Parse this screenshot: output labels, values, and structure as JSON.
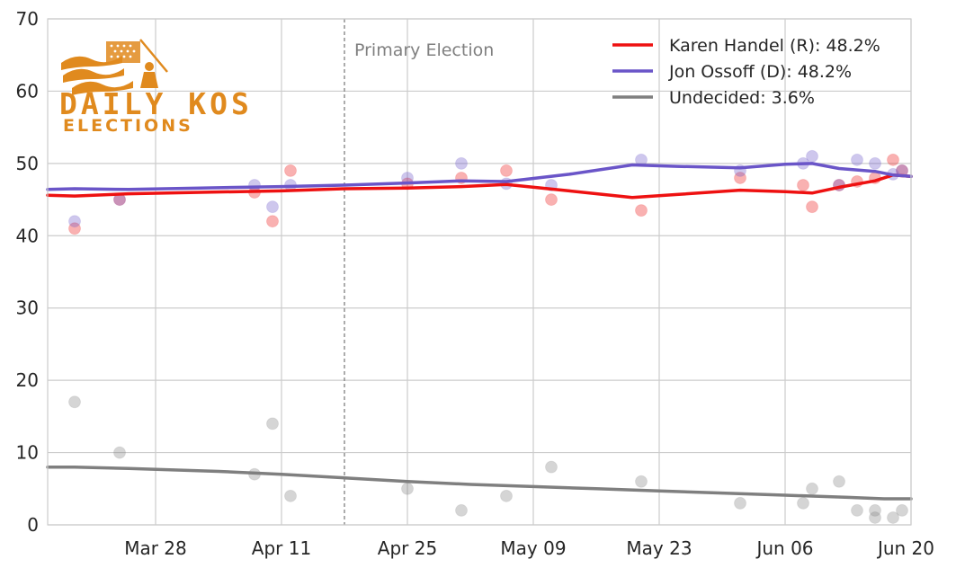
{
  "logo": {
    "line1": "DAILY KOS",
    "line2": "ELECTIONS",
    "color": "#e08a1e"
  },
  "chart_data": {
    "type": "line",
    "title": "",
    "xlabel": "",
    "ylabel": "",
    "ylim": [
      0,
      70
    ],
    "yticks": [
      0,
      10,
      20,
      30,
      40,
      50,
      60,
      70
    ],
    "xlim": [
      "2017-03-16",
      "2017-06-20"
    ],
    "xticks": [
      {
        "date": "2017-03-28",
        "label": "Mar 28"
      },
      {
        "date": "2017-04-11",
        "label": "Apr 11"
      },
      {
        "date": "2017-04-25",
        "label": "Apr 25"
      },
      {
        "date": "2017-05-09",
        "label": "May 09"
      },
      {
        "date": "2017-05-23",
        "label": "May 23"
      },
      {
        "date": "2017-06-06",
        "label": "Jun 06"
      },
      {
        "date": "2017-06-20",
        "label": "Jun 20"
      }
    ],
    "grid": true,
    "legend_position": "top-right",
    "annotations": [
      {
        "date": "2017-04-18",
        "text": "Primary Election"
      }
    ],
    "series": [
      {
        "name": "Karen Handel (R): 48.2%",
        "color": "#ee1111",
        "trend": [
          [
            "2017-03-16",
            45.6
          ],
          [
            "2017-03-19",
            45.5
          ],
          [
            "2017-03-25",
            45.8
          ],
          [
            "2017-04-02",
            46.0
          ],
          [
            "2017-04-11",
            46.2
          ],
          [
            "2017-04-18",
            46.5
          ],
          [
            "2017-04-25",
            46.6
          ],
          [
            "2017-05-01",
            46.8
          ],
          [
            "2017-05-06",
            47.1
          ],
          [
            "2017-05-13",
            46.2
          ],
          [
            "2017-05-20",
            45.3
          ],
          [
            "2017-05-25",
            45.7
          ],
          [
            "2017-06-01",
            46.3
          ],
          [
            "2017-06-06",
            46.1
          ],
          [
            "2017-06-09",
            45.9
          ],
          [
            "2017-06-12",
            46.7
          ],
          [
            "2017-06-16",
            47.6
          ],
          [
            "2017-06-18",
            48.4
          ],
          [
            "2017-06-20",
            48.2
          ]
        ],
        "polls": [
          [
            "2017-03-19",
            41
          ],
          [
            "2017-03-24",
            45
          ],
          [
            "2017-04-08",
            46
          ],
          [
            "2017-04-10",
            42
          ],
          [
            "2017-04-12",
            49
          ],
          [
            "2017-04-25",
            47.2
          ],
          [
            "2017-05-01",
            48
          ],
          [
            "2017-05-06",
            49
          ],
          [
            "2017-05-11",
            45
          ],
          [
            "2017-05-21",
            43.5
          ],
          [
            "2017-06-01",
            48
          ],
          [
            "2017-06-08",
            47
          ],
          [
            "2017-06-09",
            44
          ],
          [
            "2017-06-12",
            47
          ],
          [
            "2017-06-14",
            47.5
          ],
          [
            "2017-06-16",
            48
          ],
          [
            "2017-06-18",
            50.5
          ],
          [
            "2017-06-19",
            49
          ]
        ]
      },
      {
        "name": "Jon Ossoff (D): 48.2%",
        "color": "#6a55c8",
        "trend": [
          [
            "2017-03-16",
            46.4
          ],
          [
            "2017-03-19",
            46.5
          ],
          [
            "2017-03-25",
            46.4
          ],
          [
            "2017-04-02",
            46.6
          ],
          [
            "2017-04-11",
            46.8
          ],
          [
            "2017-04-18",
            47.0
          ],
          [
            "2017-04-25",
            47.3
          ],
          [
            "2017-05-01",
            47.6
          ],
          [
            "2017-05-06",
            47.5
          ],
          [
            "2017-05-13",
            48.5
          ],
          [
            "2017-05-20",
            49.8
          ],
          [
            "2017-05-25",
            49.6
          ],
          [
            "2017-06-01",
            49.4
          ],
          [
            "2017-06-06",
            49.9
          ],
          [
            "2017-06-09",
            50.0
          ],
          [
            "2017-06-12",
            49.3
          ],
          [
            "2017-06-16",
            48.9
          ],
          [
            "2017-06-18",
            48.4
          ],
          [
            "2017-06-20",
            48.2
          ]
        ],
        "polls": [
          [
            "2017-03-19",
            42
          ],
          [
            "2017-03-24",
            45
          ],
          [
            "2017-04-08",
            47
          ],
          [
            "2017-04-10",
            44
          ],
          [
            "2017-04-12",
            47
          ],
          [
            "2017-04-25",
            48
          ],
          [
            "2017-05-01",
            50
          ],
          [
            "2017-05-06",
            47.2
          ],
          [
            "2017-05-11",
            47
          ],
          [
            "2017-05-21",
            50.5
          ],
          [
            "2017-06-01",
            49
          ],
          [
            "2017-06-08",
            50
          ],
          [
            "2017-06-09",
            51
          ],
          [
            "2017-06-12",
            47
          ],
          [
            "2017-06-14",
            50.5
          ],
          [
            "2017-06-16",
            50
          ],
          [
            "2017-06-18",
            48.5
          ],
          [
            "2017-06-19",
            49
          ]
        ]
      },
      {
        "name": "Undecided: 3.6%",
        "color": "#7f7f7f",
        "trend": [
          [
            "2017-03-16",
            8.0
          ],
          [
            "2017-03-19",
            8.0
          ],
          [
            "2017-03-25",
            7.8
          ],
          [
            "2017-04-04",
            7.4
          ],
          [
            "2017-04-11",
            7.0
          ],
          [
            "2017-04-18",
            6.5
          ],
          [
            "2017-04-25",
            6.0
          ],
          [
            "2017-05-02",
            5.6
          ],
          [
            "2017-05-09",
            5.3
          ],
          [
            "2017-05-16",
            5.0
          ],
          [
            "2017-05-23",
            4.7
          ],
          [
            "2017-05-30",
            4.4
          ],
          [
            "2017-06-06",
            4.1
          ],
          [
            "2017-06-13",
            3.8
          ],
          [
            "2017-06-17",
            3.6
          ],
          [
            "2017-06-20",
            3.6
          ]
        ],
        "polls": [
          [
            "2017-03-19",
            17
          ],
          [
            "2017-03-24",
            10
          ],
          [
            "2017-04-08",
            7
          ],
          [
            "2017-04-10",
            14
          ],
          [
            "2017-04-12",
            4
          ],
          [
            "2017-04-25",
            5
          ],
          [
            "2017-05-01",
            2
          ],
          [
            "2017-05-06",
            4
          ],
          [
            "2017-05-11",
            8
          ],
          [
            "2017-05-21",
            6
          ],
          [
            "2017-06-01",
            3
          ],
          [
            "2017-06-08",
            3
          ],
          [
            "2017-06-09",
            5
          ],
          [
            "2017-06-12",
            6
          ],
          [
            "2017-06-14",
            2
          ],
          [
            "2017-06-16",
            1
          ],
          [
            "2017-06-16",
            2
          ],
          [
            "2017-06-18",
            1
          ],
          [
            "2017-06-19",
            2
          ]
        ]
      }
    ]
  }
}
